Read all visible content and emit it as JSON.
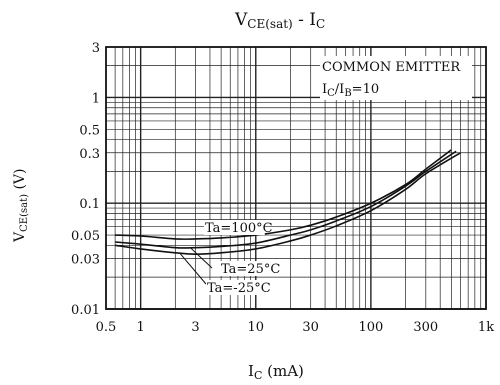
{
  "chart_data": {
    "type": "line",
    "title": {
      "main": "V",
      "sub": "CE(sat)",
      "sep": " - ",
      "main2": "I",
      "sub2": "C"
    },
    "xlabel": {
      "main": "I",
      "sub": "C",
      "unit": " (mA)"
    },
    "ylabel": {
      "main": "V",
      "sub": "CE(sat)",
      "unit": " (V)"
    },
    "xscale": "log",
    "yscale": "log",
    "xlim": [
      0.5,
      1000
    ],
    "ylim": [
      0.01,
      3
    ],
    "xticks": [
      {
        "v": 0.5,
        "label": "0.5"
      },
      {
        "v": 1,
        "label": "1"
      },
      {
        "v": 3,
        "label": "3"
      },
      {
        "v": 10,
        "label": "10"
      },
      {
        "v": 30,
        "label": "30"
      },
      {
        "v": 100,
        "label": "100"
      },
      {
        "v": 300,
        "label": "300"
      },
      {
        "v": 1000,
        "label": "1k"
      }
    ],
    "yticks": [
      {
        "v": 0.01,
        "label": "0.01"
      },
      {
        "v": 0.03,
        "label": "0.03"
      },
      {
        "v": 0.05,
        "label": "0.05"
      },
      {
        "v": 0.1,
        "label": "0.1"
      },
      {
        "v": 0.3,
        "label": "0.3"
      },
      {
        "v": 0.5,
        "label": "0.5"
      },
      {
        "v": 1,
        "label": "1"
      },
      {
        "v": 3,
        "label": "3"
      }
    ],
    "grid": true,
    "annotation": {
      "line1": "COMMON EMITTER",
      "line2": {
        "a": "I",
        "asub": "C",
        "slash": "/I",
        "bsub": "B",
        "eq": "=10"
      }
    },
    "series": [
      {
        "name": "Ta=100°C",
        "x": [
          0.6,
          1,
          2,
          3,
          5,
          10,
          20,
          30,
          50,
          100,
          200,
          300,
          500
        ],
        "y": [
          0.05,
          0.049,
          0.046,
          0.046,
          0.047,
          0.05,
          0.056,
          0.062,
          0.074,
          0.1,
          0.15,
          0.21,
          0.32
        ]
      },
      {
        "name": "Ta=25°C",
        "x": [
          0.6,
          1,
          2,
          3,
          5,
          10,
          20,
          30,
          50,
          100,
          200,
          300,
          550
        ],
        "y": [
          0.043,
          0.041,
          0.038,
          0.038,
          0.039,
          0.042,
          0.05,
          0.056,
          0.068,
          0.093,
          0.145,
          0.2,
          0.31
        ]
      },
      {
        "name": "Ta=-25°C",
        "x": [
          0.6,
          1,
          2,
          3,
          5,
          10,
          20,
          30,
          50,
          100,
          200,
          300,
          600
        ],
        "y": [
          0.04,
          0.037,
          0.034,
          0.033,
          0.034,
          0.037,
          0.044,
          0.05,
          0.061,
          0.085,
          0.135,
          0.19,
          0.3
        ]
      }
    ]
  }
}
